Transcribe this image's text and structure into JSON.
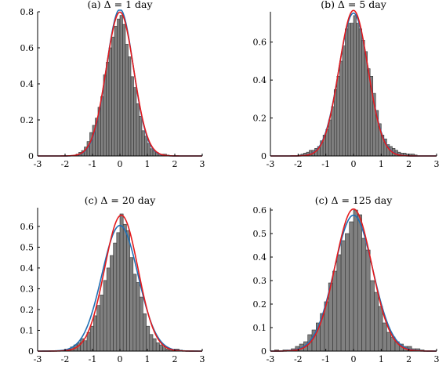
{
  "chart_data": [
    {
      "type": "bar",
      "title": "(a) Δ = 1 day",
      "xlim": [
        -3,
        3
      ],
      "ylim": [
        0,
        0.8
      ],
      "xticks": [
        "-3",
        "-2",
        "-1",
        "0",
        "1",
        "2",
        "3"
      ],
      "yticks": [
        "0",
        "0.2",
        "0.4",
        "0.6",
        "0.8"
      ],
      "bin_width": 0.1,
      "bin_starts": [
        -1.6,
        -1.5,
        -1.4,
        -1.3,
        -1.2,
        -1.1,
        -1.0,
        -0.9,
        -0.8,
        -0.7,
        -0.6,
        -0.5,
        -0.4,
        -0.3,
        -0.2,
        -0.1,
        0.0,
        0.1,
        0.2,
        0.3,
        0.4,
        0.5,
        0.6,
        0.7,
        0.8,
        0.9,
        1.0,
        1.1,
        1.2,
        1.3,
        1.4,
        1.5,
        1.6,
        1.7
      ],
      "values": [
        0.01,
        0.02,
        0.03,
        0.05,
        0.08,
        0.13,
        0.17,
        0.21,
        0.27,
        0.33,
        0.45,
        0.52,
        0.6,
        0.66,
        0.72,
        0.76,
        0.78,
        0.73,
        0.62,
        0.55,
        0.44,
        0.38,
        0.29,
        0.22,
        0.14,
        0.11,
        0.07,
        0.04,
        0.03,
        0.02,
        0.01,
        0.01,
        0.01,
        0.005
      ],
      "curves": [
        {
          "color": "#1f6fb4",
          "mean": 0.0,
          "sd": 0.49
        },
        {
          "color": "#e41a1c",
          "mean": 0.0,
          "sd": 0.5
        }
      ]
    },
    {
      "type": "bar",
      "title": "(b) Δ = 5 day",
      "xlim": [
        -3,
        3
      ],
      "ylim": [
        0,
        0.76
      ],
      "xticks": [
        "-3",
        "-2",
        "-1",
        "0",
        "1",
        "2",
        "3"
      ],
      "yticks": [
        "0",
        "0.2",
        "0.4",
        "0.6"
      ],
      "bin_width": 0.1,
      "bin_starts": [
        -2.0,
        -1.9,
        -1.8,
        -1.7,
        -1.6,
        -1.5,
        -1.4,
        -1.3,
        -1.2,
        -1.1,
        -1.0,
        -0.9,
        -0.8,
        -0.7,
        -0.6,
        -0.5,
        -0.4,
        -0.3,
        -0.2,
        -0.1,
        0.0,
        0.1,
        0.2,
        0.3,
        0.4,
        0.5,
        0.6,
        0.7,
        0.8,
        0.9,
        1.0,
        1.1,
        1.2,
        1.3,
        1.4,
        1.5,
        1.6,
        1.7,
        1.8,
        1.9,
        2.0,
        2.1,
        2.2
      ],
      "values": [
        0.005,
        0.01,
        0.015,
        0.02,
        0.03,
        0.03,
        0.04,
        0.05,
        0.08,
        0.11,
        0.14,
        0.19,
        0.26,
        0.35,
        0.42,
        0.5,
        0.58,
        0.67,
        0.7,
        0.7,
        0.74,
        0.7,
        0.67,
        0.61,
        0.55,
        0.46,
        0.42,
        0.33,
        0.24,
        0.17,
        0.11,
        0.09,
        0.06,
        0.05,
        0.04,
        0.03,
        0.02,
        0.015,
        0.015,
        0.01,
        0.01,
        0.01,
        0.005
      ],
      "curves": [
        {
          "color": "#1f6fb4",
          "mean": 0.0,
          "sd": 0.53
        },
        {
          "color": "#e41a1c",
          "mean": 0.0,
          "sd": 0.52
        }
      ]
    },
    {
      "type": "bar",
      "title": "(c) Δ = 20 day",
      "xlim": [
        -3,
        3
      ],
      "ylim": [
        0,
        0.69
      ],
      "xticks": [
        "-3",
        "-2",
        "-1",
        "0",
        "1",
        "2",
        "3"
      ],
      "yticks": [
        "0",
        "0.1",
        "0.2",
        "0.3",
        "0.4",
        "0.5",
        "0.6"
      ],
      "bin_width": 0.12,
      "bin_starts": [
        -2.04,
        -1.92,
        -1.8,
        -1.68,
        -1.56,
        -1.44,
        -1.32,
        -1.2,
        -1.08,
        -0.96,
        -0.84,
        -0.72,
        -0.6,
        -0.48,
        -0.36,
        -0.24,
        -0.12,
        0.0,
        0.12,
        0.24,
        0.36,
        0.48,
        0.6,
        0.72,
        0.84,
        0.96,
        1.08,
        1.2,
        1.32,
        1.44,
        1.56,
        1.68,
        1.8,
        1.92,
        2.04,
        2.16
      ],
      "values": [
        0.005,
        0.01,
        0.02,
        0.03,
        0.04,
        0.06,
        0.05,
        0.09,
        0.12,
        0.17,
        0.22,
        0.27,
        0.34,
        0.4,
        0.46,
        0.52,
        0.57,
        0.66,
        0.61,
        0.58,
        0.45,
        0.37,
        0.33,
        0.26,
        0.18,
        0.12,
        0.08,
        0.06,
        0.04,
        0.03,
        0.02,
        0.01,
        0.01,
        0.005,
        0.01,
        0.005
      ],
      "curves": [
        {
          "color": "#1f6fb4",
          "mean": 0.0,
          "sd": 0.66
        },
        {
          "color": "#e41a1c",
          "mean": 0.05,
          "sd": 0.61
        }
      ]
    },
    {
      "type": "bar",
      "title": "(c) Δ = 125 day",
      "xlim": [
        -3,
        3
      ],
      "ylim": [
        0,
        0.61
      ],
      "xticks": [
        "-3",
        "-2",
        "-1",
        "0",
        "1",
        "2",
        "3"
      ],
      "yticks": [
        "0",
        "0.1",
        "0.2",
        "0.3",
        "0.4",
        "0.5",
        "0.6"
      ],
      "bin_width": 0.15,
      "bin_starts": [
        -2.85,
        -2.7,
        -2.55,
        -2.4,
        -2.25,
        -2.1,
        -1.95,
        -1.8,
        -1.65,
        -1.5,
        -1.35,
        -1.2,
        -1.05,
        -0.9,
        -0.75,
        -0.6,
        -0.45,
        -0.3,
        -0.15,
        0.0,
        0.15,
        0.3,
        0.45,
        0.6,
        0.75,
        0.9,
        1.05,
        1.2,
        1.35,
        1.5,
        1.65,
        1.8,
        1.95,
        2.1,
        2.25,
        2.4
      ],
      "values": [
        0.005,
        0.0,
        0.005,
        0.005,
        0.01,
        0.02,
        0.03,
        0.04,
        0.07,
        0.09,
        0.12,
        0.16,
        0.21,
        0.29,
        0.34,
        0.41,
        0.47,
        0.5,
        0.55,
        0.6,
        0.58,
        0.48,
        0.43,
        0.3,
        0.25,
        0.19,
        0.12,
        0.08,
        0.06,
        0.04,
        0.03,
        0.02,
        0.02,
        0.01,
        0.01,
        0.005
      ],
      "curves": [
        {
          "color": "#1f6fb4",
          "mean": 0.0,
          "sd": 0.69
        },
        {
          "color": "#e41a1c",
          "mean": 0.0,
          "sd": 0.66
        }
      ]
    }
  ]
}
